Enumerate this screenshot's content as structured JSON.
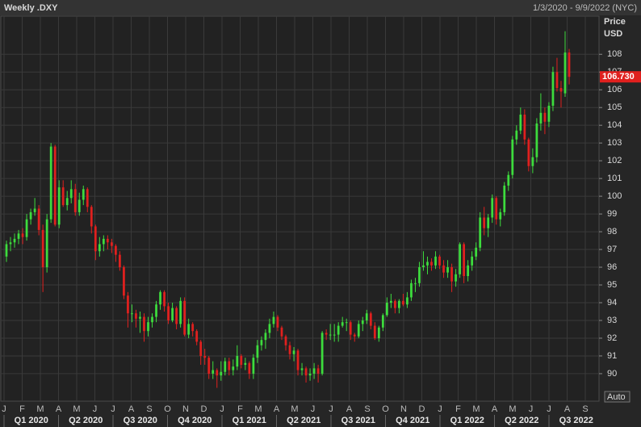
{
  "chart_data": {
    "type": "candlestick",
    "title": "Weekly .DXY",
    "subtitle": "1/3/2020 - 9/9/2022 (NYC)",
    "y_axis_label": "Price",
    "y_axis_unit": "USD",
    "scale_button": "Auto",
    "up_color": "#3ddc3d",
    "down_color": "#e0201e",
    "grid": true,
    "ylim": [
      88.45,
      110.15
    ],
    "yticks": [
      90,
      91,
      92,
      93,
      94,
      95,
      96,
      97,
      98,
      99,
      100,
      101,
      102,
      103,
      104,
      105,
      106,
      107,
      108
    ],
    "months": [
      "J",
      "F",
      "M",
      "A",
      "M",
      "J",
      "J",
      "A",
      "S",
      "O",
      "N",
      "D",
      "J",
      "F",
      "M",
      "A",
      "M",
      "J",
      "J",
      "A",
      "S",
      "O",
      "N",
      "D",
      "J",
      "F",
      "M",
      "A",
      "M",
      "J",
      "J",
      "A",
      "S"
    ],
    "quarters": [
      "Q1 2020",
      "Q2 2020",
      "Q3 2020",
      "Q4 2020",
      "Q1 2021",
      "Q2 2021",
      "Q3 2021",
      "Q4 2021",
      "Q1 2022",
      "Q2 2022",
      "Q3 2022"
    ],
    "last_value": 106.73,
    "last_value_label": "106.730",
    "ohlc": [
      [
        96.6,
        97.5,
        96.3,
        97.3
      ],
      [
        97.3,
        97.7,
        96.9,
        97.4
      ],
      [
        97.4,
        97.9,
        97.1,
        97.6
      ],
      [
        97.6,
        98.1,
        97.3,
        97.9
      ],
      [
        97.9,
        98.2,
        97.3,
        97.7
      ],
      [
        97.7,
        99.0,
        97.5,
        98.7
      ],
      [
        98.7,
        99.3,
        98.4,
        99.1
      ],
      [
        99.1,
        99.9,
        98.9,
        99.3
      ],
      [
        99.3,
        99.5,
        97.8,
        98.1
      ],
      [
        98.1,
        98.4,
        94.6,
        96.0
      ],
      [
        96.0,
        99.0,
        95.7,
        98.7
      ],
      [
        98.7,
        103.0,
        98.5,
        102.8
      ],
      [
        102.8,
        102.9,
        98.3,
        98.4
      ],
      [
        98.4,
        100.9,
        98.2,
        100.5
      ],
      [
        100.5,
        100.9,
        99.4,
        99.5
      ],
      [
        99.5,
        100.3,
        99.2,
        99.9
      ],
      [
        99.9,
        100.9,
        99.6,
        100.4
      ],
      [
        100.4,
        100.7,
        98.9,
        99.1
      ],
      [
        99.1,
        100.2,
        98.9,
        99.8
      ],
      [
        99.8,
        100.6,
        99.5,
        100.4
      ],
      [
        100.4,
        100.5,
        99.1,
        99.4
      ],
      [
        99.4,
        99.5,
        97.9,
        98.3
      ],
      [
        98.3,
        98.4,
        96.4,
        96.9
      ],
      [
        96.9,
        97.7,
        96.6,
        97.3
      ],
      [
        97.3,
        97.8,
        96.9,
        97.6
      ],
      [
        97.6,
        97.8,
        97.0,
        97.4
      ],
      [
        97.4,
        97.6,
        96.8,
        97.2
      ],
      [
        97.2,
        97.3,
        96.3,
        96.7
      ],
      [
        96.7,
        96.9,
        95.8,
        96.0
      ],
      [
        96.0,
        96.1,
        94.2,
        94.4
      ],
      [
        94.4,
        94.6,
        92.6,
        93.4
      ],
      [
        93.4,
        93.9,
        92.9,
        93.4
      ],
      [
        93.4,
        93.6,
        92.6,
        93.1
      ],
      [
        93.1,
        93.5,
        92.3,
        93.2
      ],
      [
        93.2,
        93.4,
        91.8,
        92.4
      ],
      [
        92.4,
        93.2,
        92.1,
        92.9
      ],
      [
        92.9,
        93.4,
        92.6,
        93.2
      ],
      [
        93.2,
        94.1,
        92.9,
        93.9
      ],
      [
        93.9,
        94.7,
        93.6,
        94.6
      ],
      [
        94.6,
        94.7,
        93.5,
        93.8
      ],
      [
        93.8,
        94.0,
        92.8,
        93.0
      ],
      [
        93.0,
        94.0,
        92.9,
        93.7
      ],
      [
        93.7,
        93.8,
        92.5,
        92.8
      ],
      [
        92.8,
        94.3,
        92.6,
        94.1
      ],
      [
        94.1,
        94.3,
        92.1,
        92.2
      ],
      [
        92.2,
        93.1,
        92.0,
        92.8
      ],
      [
        92.8,
        92.9,
        92.1,
        92.4
      ],
      [
        92.4,
        92.5,
        91.6,
        91.8
      ],
      [
        91.8,
        91.9,
        90.5,
        91.0
      ],
      [
        91.0,
        91.4,
        90.5,
        90.9
      ],
      [
        90.9,
        91.0,
        89.7,
        90.0
      ],
      [
        90.0,
        90.7,
        89.7,
        90.2
      ],
      [
        90.2,
        90.3,
        89.2,
        89.9
      ],
      [
        89.9,
        90.7,
        89.6,
        90.1
      ],
      [
        90.1,
        90.9,
        89.9,
        90.7
      ],
      [
        90.7,
        90.9,
        89.9,
        90.2
      ],
      [
        90.2,
        90.8,
        89.9,
        90.4
      ],
      [
        90.4,
        91.6,
        90.2,
        91.0
      ],
      [
        91.0,
        91.1,
        90.3,
        90.5
      ],
      [
        90.5,
        90.9,
        90.2,
        90.6
      ],
      [
        90.6,
        90.7,
        89.7,
        90.0
      ],
      [
        90.0,
        91.1,
        89.7,
        90.9
      ],
      [
        90.9,
        91.9,
        90.6,
        91.6
      ],
      [
        91.6,
        92.1,
        91.3,
        91.9
      ],
      [
        91.9,
        92.5,
        91.4,
        92.3
      ],
      [
        92.3,
        93.1,
        92.0,
        92.8
      ],
      [
        92.8,
        93.5,
        92.6,
        93.2
      ],
      [
        93.2,
        93.3,
        92.4,
        92.6
      ],
      [
        92.6,
        92.7,
        91.9,
        92.1
      ],
      [
        92.1,
        92.2,
        91.3,
        91.6
      ],
      [
        91.6,
        91.8,
        90.8,
        91.1
      ],
      [
        91.1,
        91.5,
        90.7,
        91.3
      ],
      [
        91.3,
        91.4,
        89.9,
        90.2
      ],
      [
        90.2,
        90.6,
        89.9,
        90.3
      ],
      [
        90.3,
        90.4,
        89.5,
        89.9
      ],
      [
        89.9,
        90.3,
        89.6,
        90.0
      ],
      [
        90.0,
        90.6,
        89.7,
        90.3
      ],
      [
        90.3,
        90.5,
        89.5,
        90.0
      ],
      [
        90.0,
        92.4,
        89.9,
        92.3
      ],
      [
        92.3,
        92.5,
        91.9,
        92.2
      ],
      [
        92.2,
        92.8,
        91.9,
        92.2
      ],
      [
        92.2,
        92.8,
        91.8,
        92.2
      ],
      [
        92.2,
        92.9,
        91.8,
        92.7
      ],
      [
        92.7,
        93.2,
        92.6,
        92.9
      ],
      [
        92.9,
        93.1,
        92.4,
        92.9
      ],
      [
        92.9,
        93.0,
        91.9,
        92.2
      ],
      [
        92.2,
        92.3,
        91.8,
        92.1
      ],
      [
        92.1,
        93.0,
        92.0,
        92.8
      ],
      [
        92.8,
        93.2,
        92.4,
        93.0
      ],
      [
        93.0,
        93.6,
        92.8,
        93.4
      ],
      [
        93.4,
        93.5,
        92.5,
        92.7
      ],
      [
        92.7,
        92.9,
        91.9,
        92.0
      ],
      [
        92.0,
        92.7,
        91.8,
        92.6
      ],
      [
        92.6,
        93.4,
        92.4,
        93.3
      ],
      [
        93.3,
        94.3,
        93.2,
        94.0
      ],
      [
        94.0,
        94.5,
        93.7,
        94.1
      ],
      [
        94.1,
        94.2,
        93.4,
        93.7
      ],
      [
        93.7,
        94.2,
        93.4,
        94.1
      ],
      [
        94.1,
        94.5,
        93.8,
        93.9
      ],
      [
        93.9,
        94.6,
        93.7,
        94.3
      ],
      [
        94.3,
        95.3,
        94.1,
        95.1
      ],
      [
        95.1,
        95.4,
        94.6,
        95.1
      ],
      [
        95.1,
        96.3,
        94.9,
        96.0
      ],
      [
        96.0,
        96.9,
        95.8,
        96.1
      ],
      [
        96.1,
        96.6,
        95.6,
        96.3
      ],
      [
        96.3,
        96.5,
        95.8,
        96.1
      ],
      [
        96.1,
        96.9,
        95.9,
        96.6
      ],
      [
        96.6,
        96.7,
        95.9,
        96.1
      ],
      [
        96.1,
        96.4,
        95.4,
        95.7
      ],
      [
        95.7,
        96.4,
        95.4,
        96.0
      ],
      [
        96.0,
        96.2,
        94.6,
        95.2
      ],
      [
        95.2,
        95.9,
        94.9,
        95.6
      ],
      [
        95.6,
        97.4,
        95.4,
        97.3
      ],
      [
        97.3,
        97.4,
        95.1,
        95.5
      ],
      [
        95.5,
        96.4,
        95.2,
        96.1
      ],
      [
        96.1,
        96.9,
        95.8,
        96.6
      ],
      [
        96.6,
        97.4,
        96.4,
        97.1
      ],
      [
        97.1,
        99.1,
        96.9,
        98.8
      ],
      [
        98.8,
        99.4,
        97.8,
        98.2
      ],
      [
        98.2,
        99.0,
        97.7,
        98.8
      ],
      [
        98.8,
        100.1,
        98.5,
        99.9
      ],
      [
        99.9,
        100.0,
        98.4,
        98.7
      ],
      [
        98.7,
        99.3,
        98.3,
        99.1
      ],
      [
        99.1,
        100.8,
        98.9,
        100.6
      ],
      [
        100.6,
        101.4,
        100.3,
        101.2
      ],
      [
        101.2,
        103.4,
        101.0,
        103.2
      ],
      [
        103.2,
        104.0,
        102.9,
        103.7
      ],
      [
        103.7,
        105.0,
        103.5,
        104.6
      ],
      [
        104.6,
        104.9,
        102.9,
        103.2
      ],
      [
        103.2,
        103.3,
        101.4,
        101.7
      ],
      [
        101.7,
        102.7,
        101.3,
        102.2
      ],
      [
        102.2,
        104.4,
        101.9,
        104.1
      ],
      [
        104.1,
        105.8,
        103.7,
        104.7
      ],
      [
        104.7,
        105.0,
        103.5,
        104.2
      ],
      [
        104.2,
        105.3,
        103.9,
        105.1
      ],
      [
        105.1,
        107.3,
        104.8,
        107.0
      ],
      [
        107.0,
        107.8,
        105.9,
        106.1
      ],
      [
        106.1,
        106.5,
        105.0,
        105.9
      ],
      [
        105.8,
        109.3,
        105.6,
        108.1
      ],
      [
        108.1,
        108.3,
        106.3,
        106.73
      ]
    ]
  }
}
